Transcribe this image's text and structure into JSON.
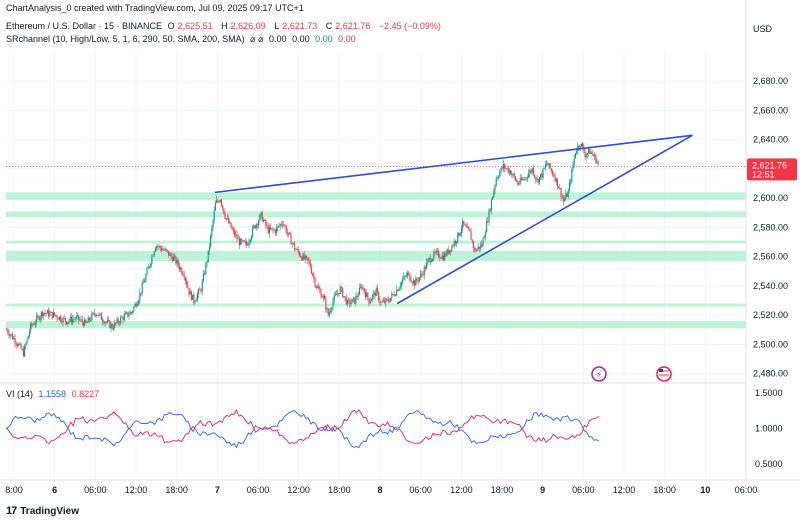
{
  "header": {
    "attribution": "ChartAnalysis_0 created with TradingView.com, Jul 09, 2025 09:17 UTC+1",
    "symbol": "Ethereum / U.S. Dollar · 15 · BINANCE",
    "ohlc": {
      "o_label": "O",
      "o": "2,625.51",
      "h_label": "H",
      "h": "2,626.09",
      "l_label": "L",
      "l": "2,621.73",
      "c_label": "C",
      "c": "2,621.76",
      "change": "−2.45 (−0.09%)"
    },
    "indicator": "SRchannel (10, High/Low, 5, 1, 6, 290, 50, SMA, 200, SMA)",
    "indicator_symbols": "⌀ ⌀",
    "indicator_values": [
      "0.00",
      "0.00",
      "0.00",
      "0.00"
    ]
  },
  "footer": {
    "brand": "TradingView"
  },
  "colors": {
    "up": "#089981",
    "down": "#f23645",
    "trendline": "#2e4fc7",
    "zone": "#b3f0d2",
    "vi_plus": "#2962ff",
    "vi_minus": "#e91e63"
  },
  "chart_data": [
    {
      "type": "candlestick",
      "title": "Ethereum / U.S. Dollar · 15 · BINANCE",
      "currency": "USD",
      "yticks": [
        2480,
        2500,
        2520,
        2540,
        2560,
        2580,
        2600,
        2620,
        2640,
        2660,
        2680
      ],
      "ytick_labels": [
        "2,480.00",
        "2,500.00",
        "2,520.00",
        "2,540.00",
        "2,560.00",
        "2,580.00",
        "2,600.00",
        "2,620.00",
        "2,640.00",
        "2,660.00",
        "2,680.00"
      ],
      "ylim": [
        2475,
        2700
      ],
      "last_price": 2621.76,
      "last_price_label": "2,621.76",
      "countdown": "12:51",
      "xticks": [
        "8:00",
        "6",
        "06:00",
        "12:00",
        "18:00",
        "7",
        "06:00",
        "12:00",
        "18:00",
        "8",
        "06:00",
        "12:00",
        "18:00",
        "9",
        "06:00",
        "12:00",
        "18:00",
        "10",
        "06:00"
      ],
      "price_path": [
        [
          0,
          2510
        ],
        [
          8,
          2502
        ],
        [
          14,
          2494
        ],
        [
          20,
          2512
        ],
        [
          30,
          2522
        ],
        [
          40,
          2520
        ],
        [
          50,
          2516
        ],
        [
          58,
          2518
        ],
        [
          66,
          2514
        ],
        [
          74,
          2522
        ],
        [
          82,
          2516
        ],
        [
          88,
          2512
        ],
        [
          96,
          2518
        ],
        [
          104,
          2522
        ],
        [
          110,
          2532
        ],
        [
          118,
          2552
        ],
        [
          124,
          2568
        ],
        [
          132,
          2564
        ],
        [
          140,
          2558
        ],
        [
          148,
          2548
        ],
        [
          152,
          2536
        ],
        [
          156,
          2530
        ],
        [
          162,
          2538
        ],
        [
          168,
          2562
        ],
        [
          174,
          2596
        ],
        [
          178,
          2600
        ],
        [
          182,
          2588
        ],
        [
          188,
          2578
        ],
        [
          194,
          2570
        ],
        [
          200,
          2568
        ],
        [
          206,
          2580
        ],
        [
          212,
          2588
        ],
        [
          218,
          2578
        ],
        [
          224,
          2578
        ],
        [
          230,
          2584
        ],
        [
          234,
          2576
        ],
        [
          240,
          2566
        ],
        [
          246,
          2560
        ],
        [
          252,
          2556
        ],
        [
          258,
          2540
        ],
        [
          264,
          2532
        ],
        [
          268,
          2520
        ],
        [
          272,
          2530
        ],
        [
          278,
          2538
        ],
        [
          284,
          2528
        ],
        [
          290,
          2530
        ],
        [
          296,
          2540
        ],
        [
          302,
          2530
        ],
        [
          308,
          2536
        ],
        [
          312,
          2528
        ],
        [
          318,
          2530
        ],
        [
          324,
          2536
        ],
        [
          330,
          2544
        ],
        [
          334,
          2548
        ],
        [
          340,
          2542
        ],
        [
          346,
          2548
        ],
        [
          352,
          2558
        ],
        [
          358,
          2562
        ],
        [
          364,
          2560
        ],
        [
          370,
          2566
        ],
        [
          376,
          2574
        ],
        [
          380,
          2582
        ],
        [
          386,
          2576
        ],
        [
          390,
          2564
        ],
        [
          396,
          2568
        ],
        [
          402,
          2590
        ],
        [
          408,
          2614
        ],
        [
          414,
          2622
        ],
        [
          420,
          2618
        ],
        [
          426,
          2610
        ],
        [
          432,
          2614
        ],
        [
          438,
          2620
        ],
        [
          442,
          2612
        ],
        [
          446,
          2616
        ],
        [
          450,
          2624
        ],
        [
          456,
          2616
        ],
        [
          460,
          2608
        ],
        [
          464,
          2598
        ],
        [
          468,
          2604
        ],
        [
          474,
          2632
        ],
        [
          478,
          2638
        ],
        [
          482,
          2630
        ],
        [
          486,
          2632
        ],
        [
          490,
          2628
        ],
        [
          494,
          2622
        ]
      ],
      "zones": [
        [
          2604,
          2599
        ],
        [
          2591,
          2587
        ],
        [
          2571,
          2569
        ],
        [
          2564,
          2557
        ],
        [
          2528,
          2526
        ],
        [
          2516,
          2511
        ]
      ],
      "trendlines": [
        {
          "from": [
            174,
            2604
          ],
          "to": [
            572,
            2643
          ]
        },
        {
          "from": [
            326,
            2528
          ],
          "to": [
            572,
            2643
          ]
        }
      ]
    },
    {
      "type": "line",
      "title": "VI (14)",
      "series": [
        {
          "name": "VI+",
          "last_label": "1.1558"
        },
        {
          "name": "VI−",
          "last_label": "0.8227"
        }
      ],
      "yticks": [
        0.5,
        1.0,
        1.5
      ],
      "ytick_labels": [
        "0.5000",
        "1.0000",
        "1.5000"
      ],
      "ylim": [
        0.3,
        1.6
      ]
    }
  ]
}
